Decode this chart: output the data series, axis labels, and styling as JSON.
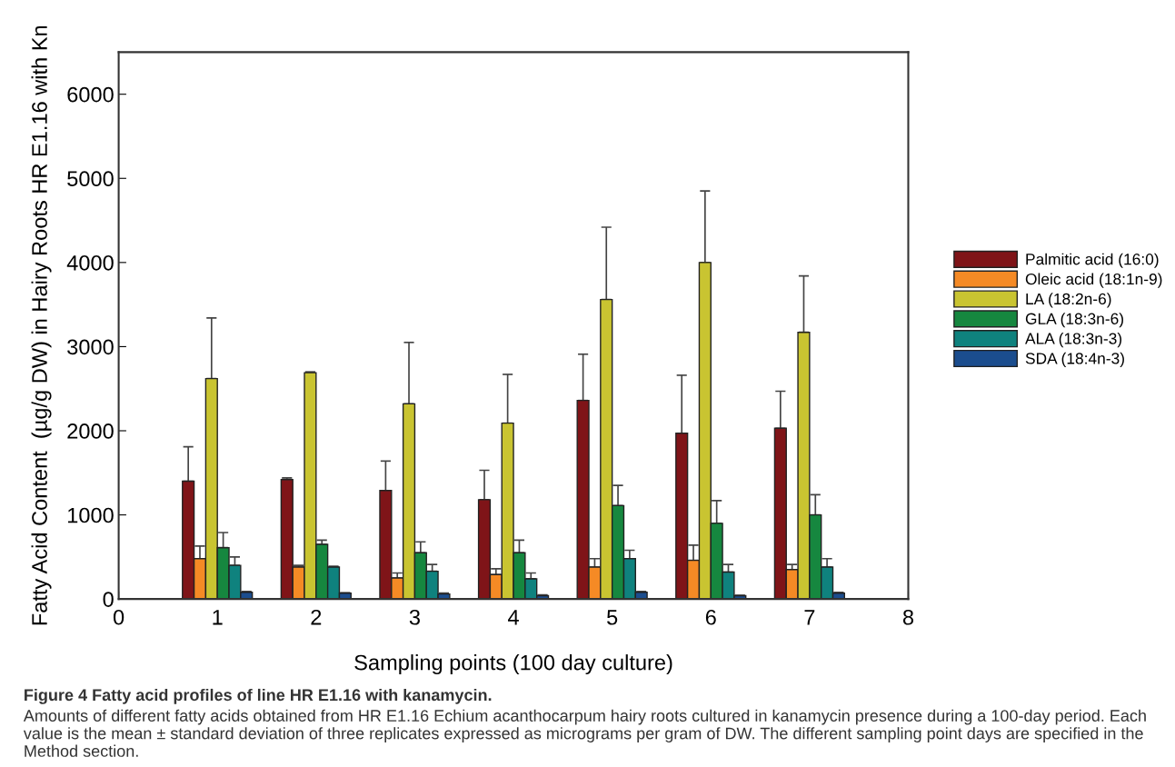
{
  "chart_data": {
    "type": "bar",
    "title": "Figure 4 Fatty acid profiles of line HR E1.16 with kanamycin.",
    "xlabel": "Sampling points (100 day culture)",
    "ylabel": "Fatty Acid Content  (µg/g DW) in Hairy Roots HR E1.16 with Kn",
    "annotations": [
      "Amounts of different fatty acids obtained from HR E1.16 Echium acanthocarpum hairy roots cultured in kanamycin presence during a 100-day period. Each value is the mean ± standard deviation of three replicates expressed as micrograms per gram of DW. The different sampling point days are specified in the Method section."
    ],
    "x": [
      1,
      2,
      3,
      4,
      5,
      6,
      7
    ],
    "xlim": [
      0,
      8
    ],
    "xticks": [
      0,
      1,
      2,
      3,
      4,
      5,
      6,
      7,
      8
    ],
    "ylim": [
      0,
      6500
    ],
    "yticks": [
      0,
      1000,
      2000,
      3000,
      4000,
      5000,
      6000
    ],
    "legend": "right",
    "grid": false,
    "series": [
      {
        "name": "Palmitic acid (16:0)",
        "color": "#7f1418",
        "values": [
          1400,
          1420,
          1290,
          1180,
          2360,
          1970,
          2030
        ],
        "errors": [
          410,
          20,
          350,
          350,
          550,
          690,
          440
        ]
      },
      {
        "name": "Oleic acid (18:1n-9)",
        "color": "#f58a25",
        "values": [
          480,
          380,
          250,
          290,
          380,
          460,
          350
        ],
        "errors": [
          150,
          20,
          60,
          70,
          100,
          180,
          60
        ]
      },
      {
        "name": "LA (18:2n-6)",
        "color": "#c9c431",
        "values": [
          2620,
          2690,
          2320,
          2090,
          3560,
          4000,
          3170
        ],
        "errors": [
          720,
          10,
          730,
          580,
          860,
          850,
          670
        ]
      },
      {
        "name": "GLA (18:3n-6)",
        "color": "#16873f",
        "values": [
          610,
          650,
          550,
          550,
          1110,
          900,
          1000
        ],
        "errors": [
          180,
          50,
          130,
          150,
          240,
          270,
          240
        ]
      },
      {
        "name": "ALA (18:3n-3)",
        "color": "#0f827e",
        "values": [
          400,
          380,
          330,
          240,
          480,
          320,
          380
        ],
        "errors": [
          100,
          10,
          80,
          70,
          100,
          90,
          100
        ]
      },
      {
        "name": "SDA (18:4n-3)",
        "color": "#1b4d8e",
        "values": [
          80,
          70,
          60,
          40,
          80,
          40,
          70
        ],
        "errors": [
          10,
          5,
          10,
          10,
          10,
          5,
          10
        ]
      }
    ]
  }
}
